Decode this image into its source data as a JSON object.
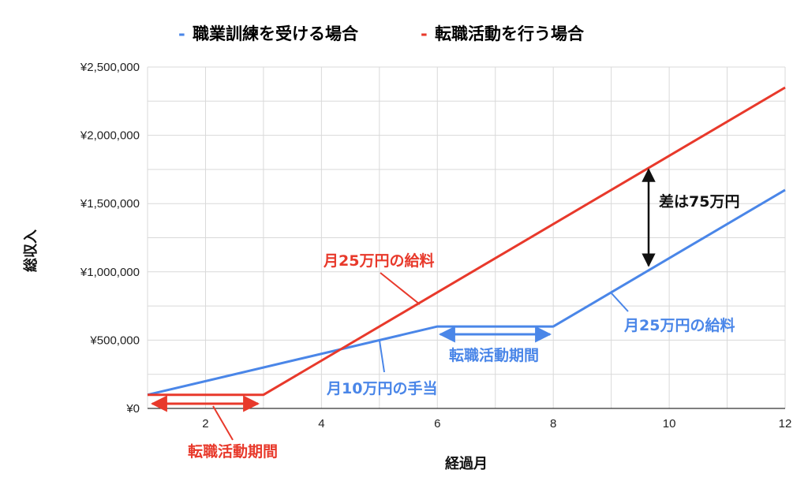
{
  "chart_data": {
    "type": "line",
    "title": "",
    "xlabel": "経過月",
    "ylabel": "総収入",
    "xlim": [
      1,
      12
    ],
    "ylim": [
      0,
      2500000
    ],
    "x_ticks": [
      2,
      4,
      6,
      8,
      10,
      12
    ],
    "x_tick_labels": [
      "2",
      "4",
      "6",
      "8",
      "10",
      "12"
    ],
    "y_ticks": [
      0,
      500000,
      1000000,
      1500000,
      2000000,
      2500000
    ],
    "y_tick_labels": [
      "¥0",
      "¥500,000",
      "¥1,000,000",
      "¥1,500,000",
      "¥2,000,000",
      "¥2,500,000"
    ],
    "grid": true,
    "legend_position": "top-center",
    "series": [
      {
        "name": "職業訓練を受ける場合",
        "color": "#4a86e8",
        "x": [
          1,
          6,
          8,
          12
        ],
        "y": [
          100000,
          600000,
          600000,
          1600000
        ]
      },
      {
        "name": "転職活動を行う場合",
        "color": "#e8392b",
        "x": [
          1,
          3,
          12
        ],
        "y": [
          100000,
          100000,
          2350000
        ]
      }
    ],
    "annotations": [
      {
        "text": "月25万円の給料",
        "color": "#e8392b"
      },
      {
        "text": "月10万円の手当",
        "color": "#4a86e8"
      },
      {
        "text": "転職活動期間",
        "color": "#4a86e8"
      },
      {
        "text": "月25万円の給料",
        "color": "#4a86e8"
      },
      {
        "text": "差は75万円",
        "color": "#111111"
      },
      {
        "text": "転職活動期間",
        "color": "#e8392b"
      }
    ]
  }
}
